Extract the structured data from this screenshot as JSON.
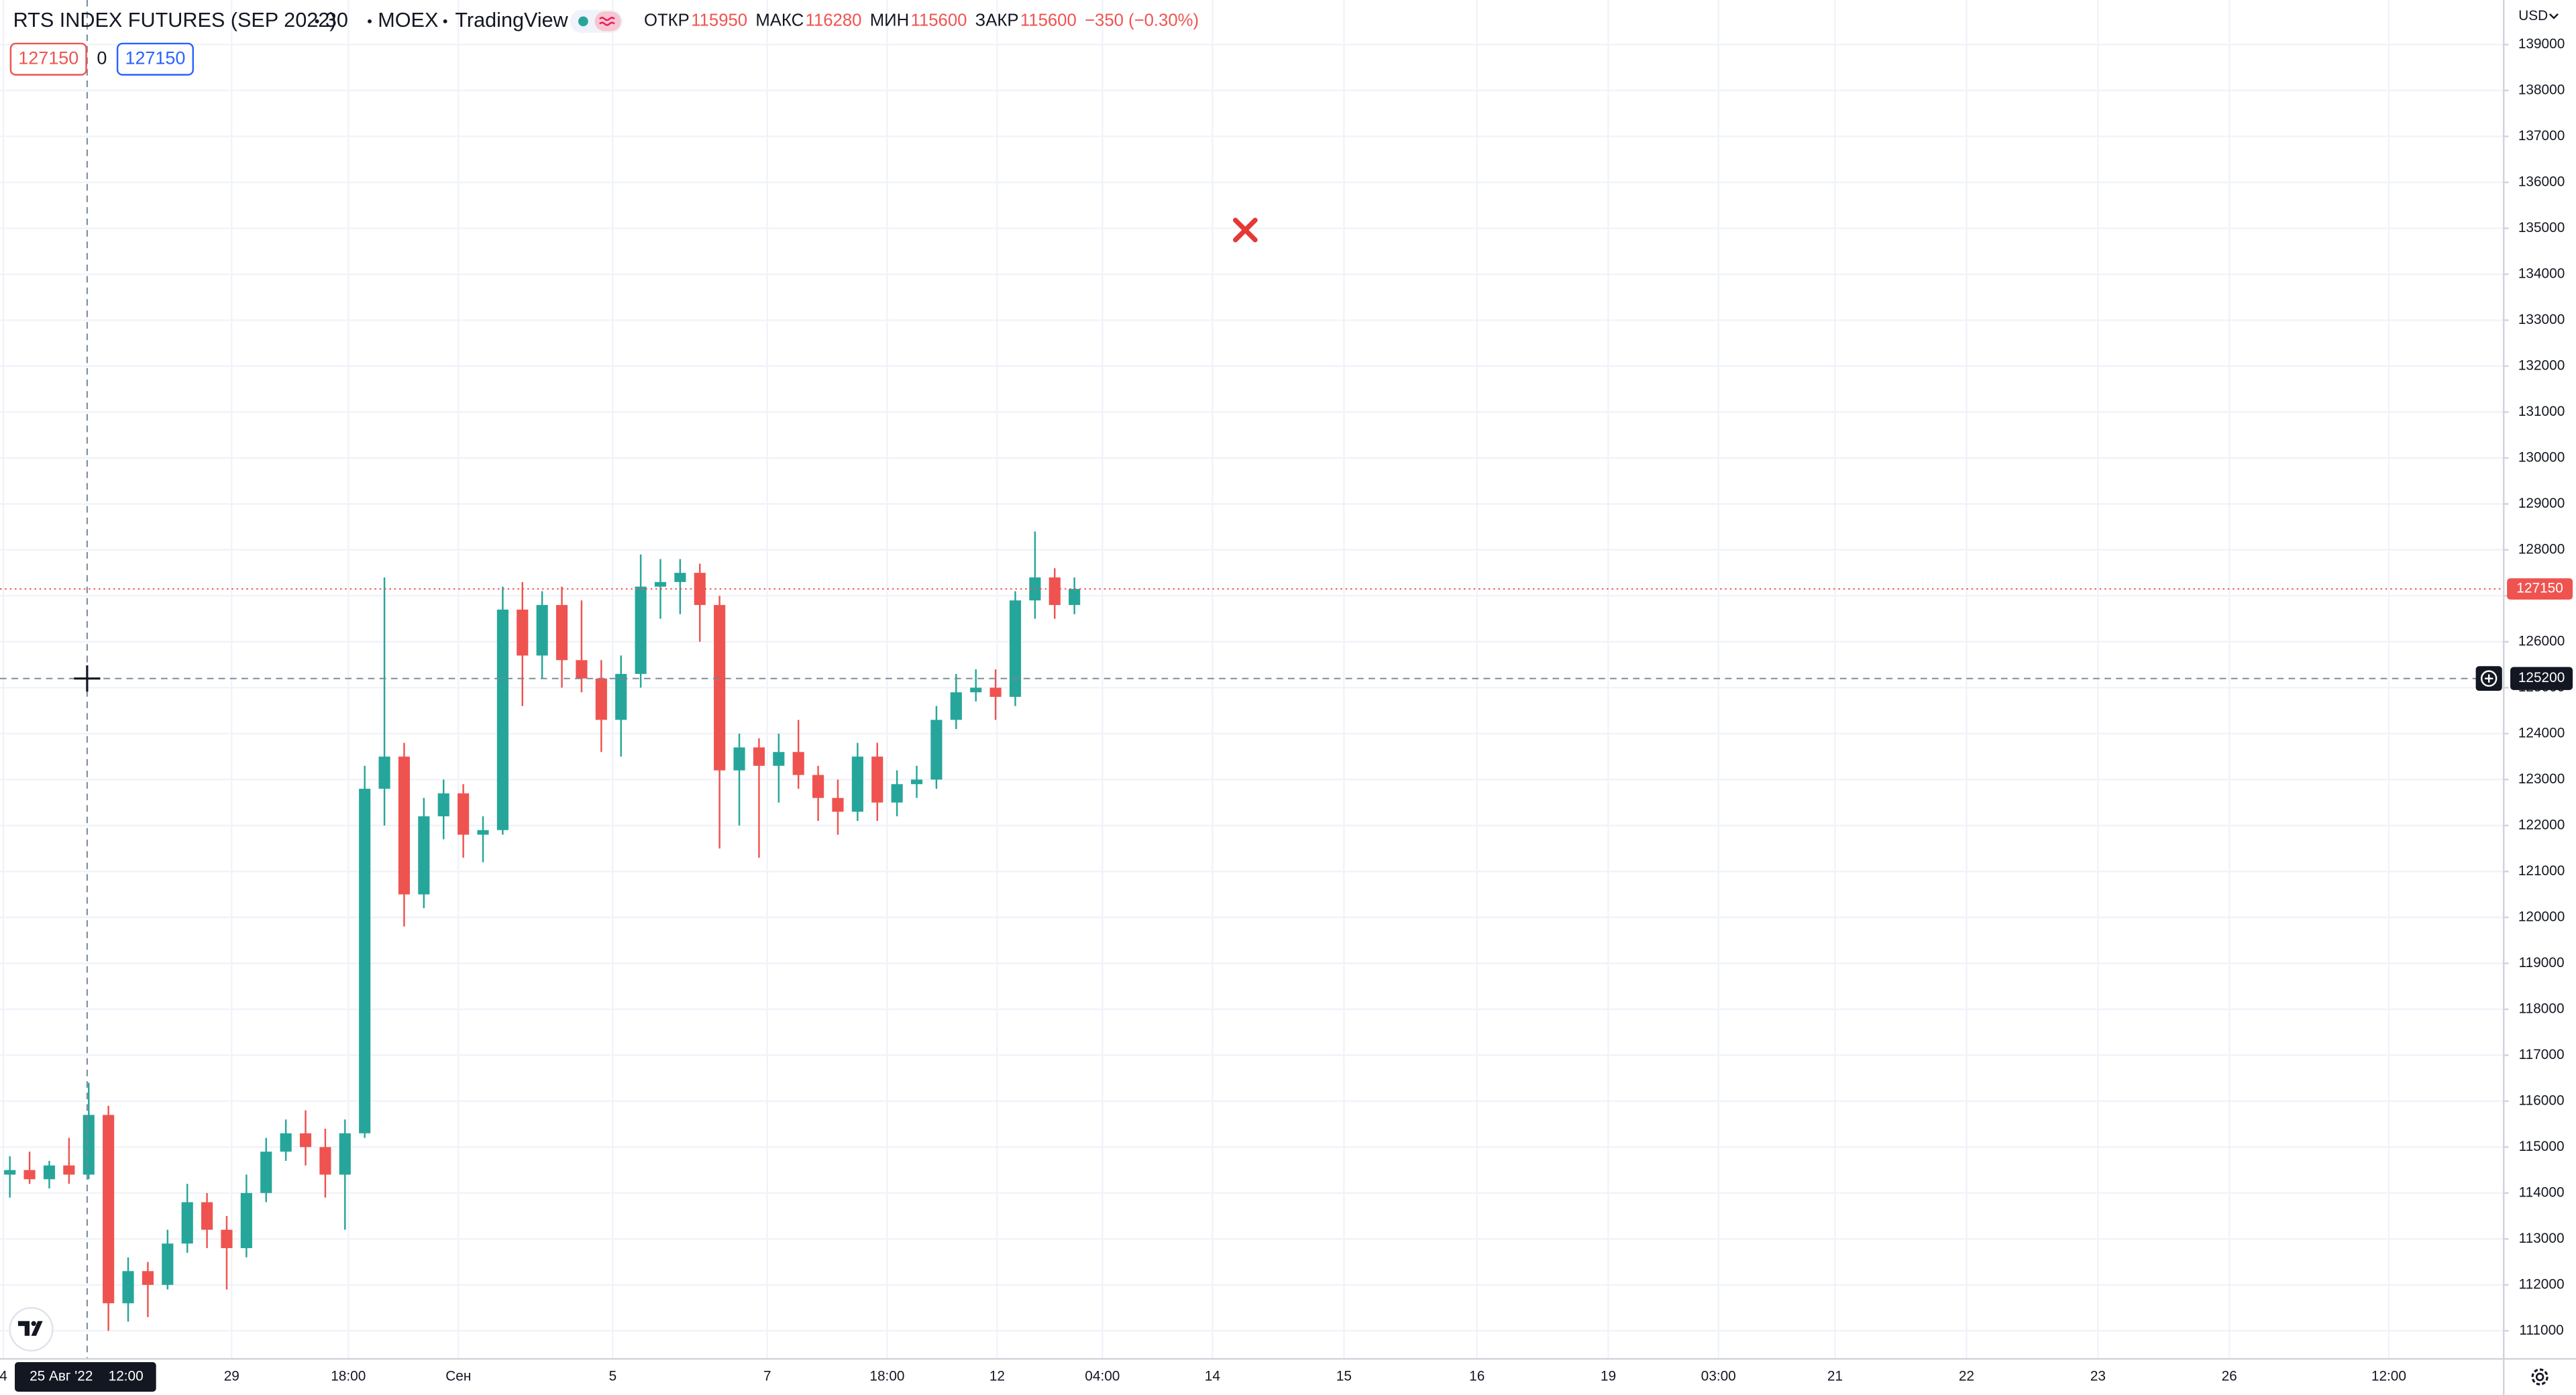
{
  "header": {
    "symbol": "RTS INDEX FUTURES (SEP 2022)",
    "interval": "30",
    "exchange": "MOEX",
    "source": "TradingView",
    "ohlc": [
      {
        "label": "ОТКР",
        "value": 115950
      },
      {
        "label": "МАКС",
        "value": 116280
      },
      {
        "label": "МИН",
        "value": 115600
      },
      {
        "label": "ЗАКР",
        "value": 115600
      }
    ],
    "change": "−350 (−0.30%)"
  },
  "order_panel": {
    "sell": 127150,
    "spread": 0,
    "buy": 127150
  },
  "chart_data": {
    "type": "candlestick",
    "currency": "USD",
    "up_color": "#26a69a",
    "down_color": "#ef5350",
    "x": [
      0.5,
      1.5,
      2.5,
      3.5,
      4.5,
      5.5,
      6.5,
      7.5,
      8.5,
      9.5,
      10.5,
      11.5,
      12.5,
      13.5,
      14.5,
      15.5,
      16.5,
      17.5,
      18.5,
      19.5,
      20.5,
      21.5,
      22.5,
      23.5,
      24.5,
      25.5,
      26.5,
      27.5,
      28.5,
      29.5,
      30.5,
      31.5,
      32.5,
      33.5,
      34.5,
      35.5,
      36.5,
      37.5,
      38.5,
      39.5,
      40.5,
      41.5,
      42.5,
      43.5,
      44.5,
      45.5,
      46.5,
      47.5,
      48.5,
      49.5,
      50.5,
      51.5,
      52.5,
      53.5,
      54.5
    ],
    "open": [
      114400,
      114500,
      114300,
      114600,
      114400,
      115700,
      111600,
      112300,
      112000,
      112900,
      113800,
      113200,
      112800,
      114000,
      114900,
      115300,
      115000,
      114400,
      115300,
      122800,
      123500,
      120500,
      122200,
      122700,
      121800,
      121900,
      126700,
      125700,
      126800,
      125600,
      125200,
      124300,
      125300,
      127200,
      127300,
      127500,
      126800,
      123200,
      123700,
      123300,
      123600,
      123100,
      122600,
      122300,
      123500,
      122500,
      122900,
      123000,
      124300,
      124900,
      125000,
      124800,
      126900,
      127400,
      126800
    ],
    "high": [
      114800,
      114900,
      114700,
      115200,
      116400,
      115900,
      112600,
      112500,
      113200,
      114200,
      114000,
      113500,
      114400,
      115200,
      115600,
      115800,
      115400,
      115600,
      123300,
      127400,
      123800,
      122600,
      123000,
      122900,
      122200,
      127200,
      127300,
      127100,
      127200,
      126900,
      125600,
      125700,
      127900,
      127800,
      127800,
      127700,
      127000,
      124000,
      123900,
      124000,
      124300,
      123300,
      123000,
      123800,
      123800,
      123200,
      123300,
      124600,
      125300,
      125400,
      125400,
      127100,
      128400,
      127600,
      127400
    ],
    "low": [
      113900,
      114200,
      114100,
      114200,
      114300,
      111000,
      111200,
      111300,
      111900,
      112700,
      112800,
      111900,
      112600,
      113800,
      114700,
      114600,
      113900,
      113200,
      115200,
      122000,
      119800,
      120200,
      121700,
      121300,
      121200,
      121800,
      124600,
      125200,
      125000,
      124900,
      123600,
      123500,
      125000,
      126500,
      126600,
      126000,
      121500,
      122000,
      121300,
      122500,
      122800,
      122100,
      121800,
      122100,
      122100,
      122200,
      122600,
      122800,
      124100,
      124700,
      124300,
      124600,
      126500,
      126500,
      126600
    ],
    "close": [
      114500,
      114300,
      114600,
      114400,
      115700,
      111600,
      112300,
      112000,
      112900,
      113800,
      113200,
      112800,
      114000,
      114900,
      115300,
      115000,
      114400,
      115300,
      122800,
      123500,
      120500,
      122200,
      122700,
      121800,
      121900,
      126700,
      125700,
      126800,
      125600,
      125200,
      124300,
      125300,
      127200,
      127300,
      127500,
      126800,
      123200,
      123700,
      123300,
      123600,
      123100,
      122600,
      122300,
      123500,
      122500,
      122900,
      123000,
      124300,
      124900,
      125000,
      124800,
      126900,
      127400,
      126800,
      127150
    ],
    "xlim": [
      0,
      127
    ],
    "ylim": [
      110390,
      139970
    ],
    "yticks": [
      111000,
      112000,
      113000,
      114000,
      115000,
      116000,
      117000,
      118000,
      119000,
      120000,
      121000,
      122000,
      123000,
      124000,
      125000,
      126000,
      127000,
      128000,
      129000,
      130000,
      131000,
      132000,
      133000,
      134000,
      135000,
      136000,
      137000,
      138000,
      139000
    ],
    "xticks": [
      {
        "value": 0.17,
        "label": "4"
      },
      {
        "value": 11.75,
        "label": "29"
      },
      {
        "value": 17.67,
        "label": "18:00"
      },
      {
        "value": 23.25,
        "label": "Сен"
      },
      {
        "value": 31.08,
        "label": "5"
      },
      {
        "value": 38.92,
        "label": "7"
      },
      {
        "value": 45,
        "label": "18:00"
      },
      {
        "value": 50.58,
        "label": "12"
      },
      {
        "value": 55.92,
        "label": "04:00"
      },
      {
        "value": 61.5,
        "label": "14"
      },
      {
        "value": 68.17,
        "label": "15"
      },
      {
        "value": 74.92,
        "label": "16"
      },
      {
        "value": 81.58,
        "label": "19"
      },
      {
        "value": 87.17,
        "label": "03:00"
      },
      {
        "value": 93.08,
        "label": "21"
      },
      {
        "value": 99.75,
        "label": "22"
      },
      {
        "value": 106.42,
        "label": "23"
      },
      {
        "value": 113.08,
        "label": "26"
      },
      {
        "value": 121.17,
        "label": "12:00"
      }
    ],
    "grid": true,
    "last_price": 127150,
    "crosshair": {
      "x": 4.42,
      "price": 125200,
      "date_label": "25 Авг '22",
      "time_label": "12:00"
    }
  }
}
